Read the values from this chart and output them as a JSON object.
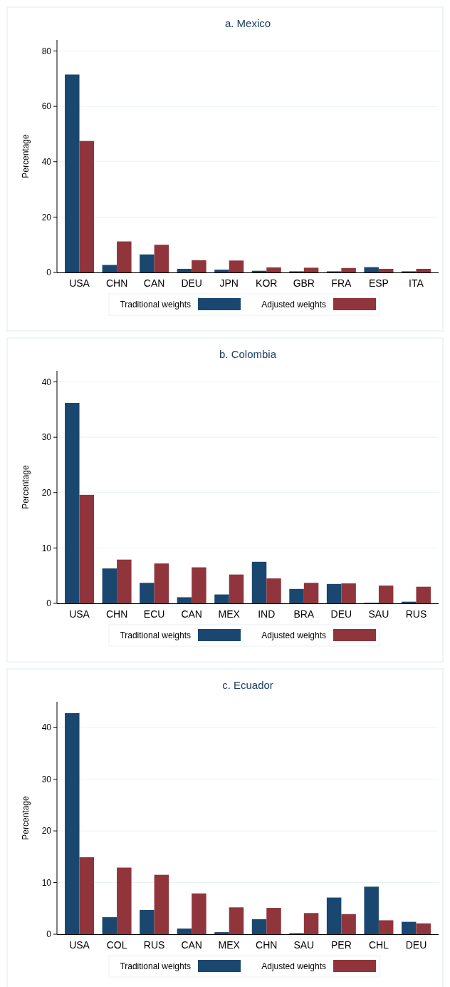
{
  "chart_data": [
    {
      "type": "bar",
      "title": "a. Mexico",
      "ylabel": "Percentage",
      "categories": [
        "USA",
        "CHN",
        "CAN",
        "DEU",
        "JPN",
        "KOR",
        "GBR",
        "FRA",
        "ESP",
        "ITA"
      ],
      "series": [
        {
          "name": "Traditional weights",
          "color": "#1a476f",
          "values": [
            71.5,
            2.7,
            6.5,
            1.3,
            1.0,
            0.6,
            0.4,
            0.4,
            1.9,
            0.4
          ]
        },
        {
          "name": "Adjusted weights",
          "color": "#90353b",
          "values": [
            47.5,
            11.2,
            10.0,
            4.4,
            4.3,
            1.8,
            1.7,
            1.6,
            1.3,
            1.3
          ]
        }
      ],
      "ylim": [
        0,
        84
      ],
      "yticks": [
        0,
        20,
        40,
        60,
        80
      ],
      "grid": "y",
      "legend": "bottom"
    },
    {
      "type": "bar",
      "title": "b. Colombia",
      "ylabel": "Percentage",
      "categories": [
        "USA",
        "CHN",
        "ECU",
        "CAN",
        "MEX",
        "IND",
        "BRA",
        "DEU",
        "SAU",
        "RUS"
      ],
      "series": [
        {
          "name": "Traditional weights",
          "color": "#1a476f",
          "values": [
            36.2,
            6.3,
            3.7,
            1.1,
            1.6,
            7.5,
            2.6,
            3.5,
            0.1,
            0.3
          ]
        },
        {
          "name": "Adjusted weights",
          "color": "#90353b",
          "values": [
            19.6,
            7.9,
            7.2,
            6.5,
            5.2,
            4.5,
            3.7,
            3.6,
            3.2,
            3.0
          ]
        }
      ],
      "ylim": [
        0,
        42
      ],
      "yticks": [
        0,
        10,
        20,
        30,
        40
      ],
      "grid": "y",
      "legend": "bottom"
    },
    {
      "type": "bar",
      "title": "c. Ecuador",
      "ylabel": "Percentage",
      "categories": [
        "USA",
        "COL",
        "RUS",
        "CAN",
        "MEX",
        "CHN",
        "SAU",
        "PER",
        "CHL",
        "DEU"
      ],
      "series": [
        {
          "name": "Traditional weights",
          "color": "#1a476f",
          "values": [
            42.8,
            3.3,
            4.7,
            1.1,
            0.4,
            2.9,
            0.2,
            7.1,
            9.2,
            2.4
          ]
        },
        {
          "name": "Adjusted weights",
          "color": "#90353b",
          "values": [
            14.9,
            12.9,
            11.5,
            7.9,
            5.2,
            5.1,
            4.1,
            3.9,
            2.7,
            2.1
          ]
        }
      ],
      "ylim": [
        0,
        45
      ],
      "yticks": [
        0,
        10,
        20,
        30,
        40
      ],
      "grid": "y",
      "legend": "bottom"
    }
  ]
}
